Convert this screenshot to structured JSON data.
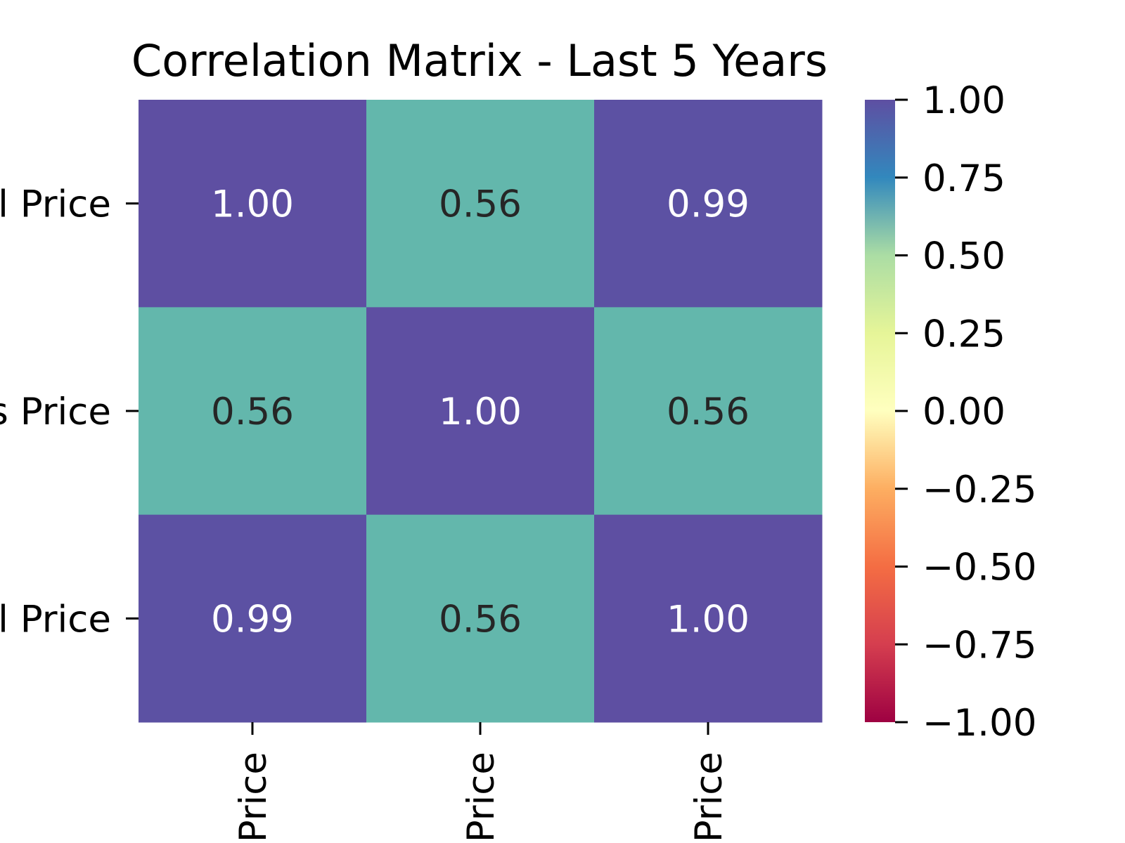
{
  "chart_data": {
    "type": "heatmap",
    "title": "Correlation Matrix - Last 5 Years",
    "row_labels": [
      "l Price",
      "s Price",
      "l Price"
    ],
    "col_labels": [
      "Price",
      "Price",
      "Price"
    ],
    "values": [
      [
        1.0,
        0.56,
        0.99
      ],
      [
        0.56,
        1.0,
        0.56
      ],
      [
        0.99,
        0.56,
        1.0
      ]
    ],
    "value_format": "0.00",
    "colormap": "Spectral",
    "colorbar": {
      "min": -1.0,
      "max": 1.0,
      "ticks": [
        1.0,
        0.75,
        0.5,
        0.25,
        0.0,
        -0.25,
        -0.5,
        -0.75,
        -1.0
      ],
      "tick_labels": [
        "1.00",
        "0.75",
        "0.50",
        "0.25",
        "0.00",
        "−0.25",
        "−0.50",
        "−0.75",
        "−1.00"
      ],
      "placement": "right"
    },
    "colors": {
      "strong": "#5e4fa2",
      "moderate": "#73c6a6",
      "annotation_light": "#ffffff",
      "annotation_dark": "#262626"
    }
  }
}
